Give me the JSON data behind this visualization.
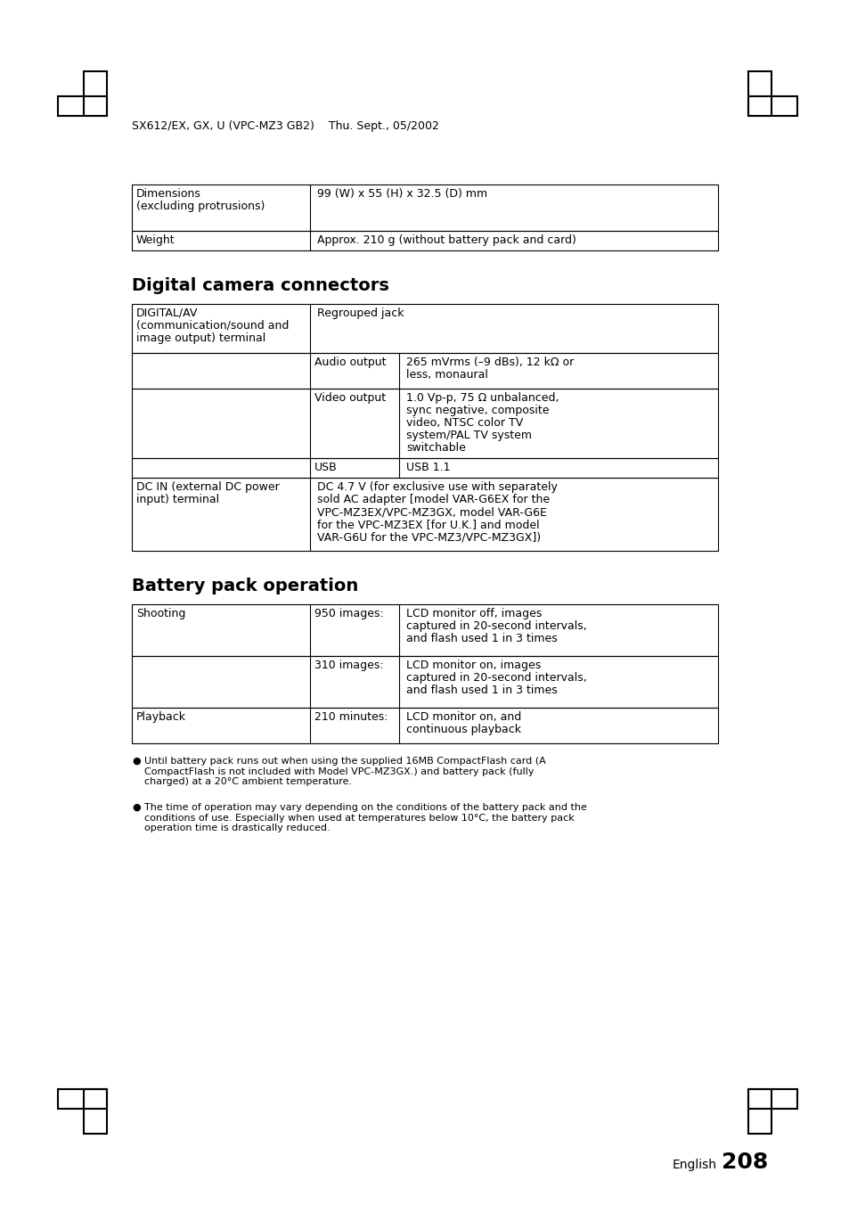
{
  "page_header": "SX612/EX, GX, U (VPC-MZ3 GB2)    Thu. Sept., 05/2002",
  "page_number": "208",
  "page_number_label": "English",
  "bg_color": "#ffffff",
  "text_color": "#000000",
  "top_table_rows": [
    [
      "Dimensions\n(excluding protrusions)",
      "99 (W) x 55 (H) x 32.5 (D) mm"
    ],
    [
      "Weight",
      "Approx. 210 g (without battery pack and card)"
    ]
  ],
  "section1_title": "Digital camera connectors",
  "section2_title": "Battery pack operation",
  "bullet1": "Until battery pack runs out when using the supplied 16MB CompactFlash card (A\nCompactFlash is not included with Model VPC-MZ3GX.) and battery pack (fully\ncharged) at a 20°C ambient temperature.",
  "bullet2": "The time of operation may vary depending on the conditions of the battery pack and the\nconditions of use. Especially when used at temperatures below 10°C, the battery pack\noperation time is drastically reduced."
}
